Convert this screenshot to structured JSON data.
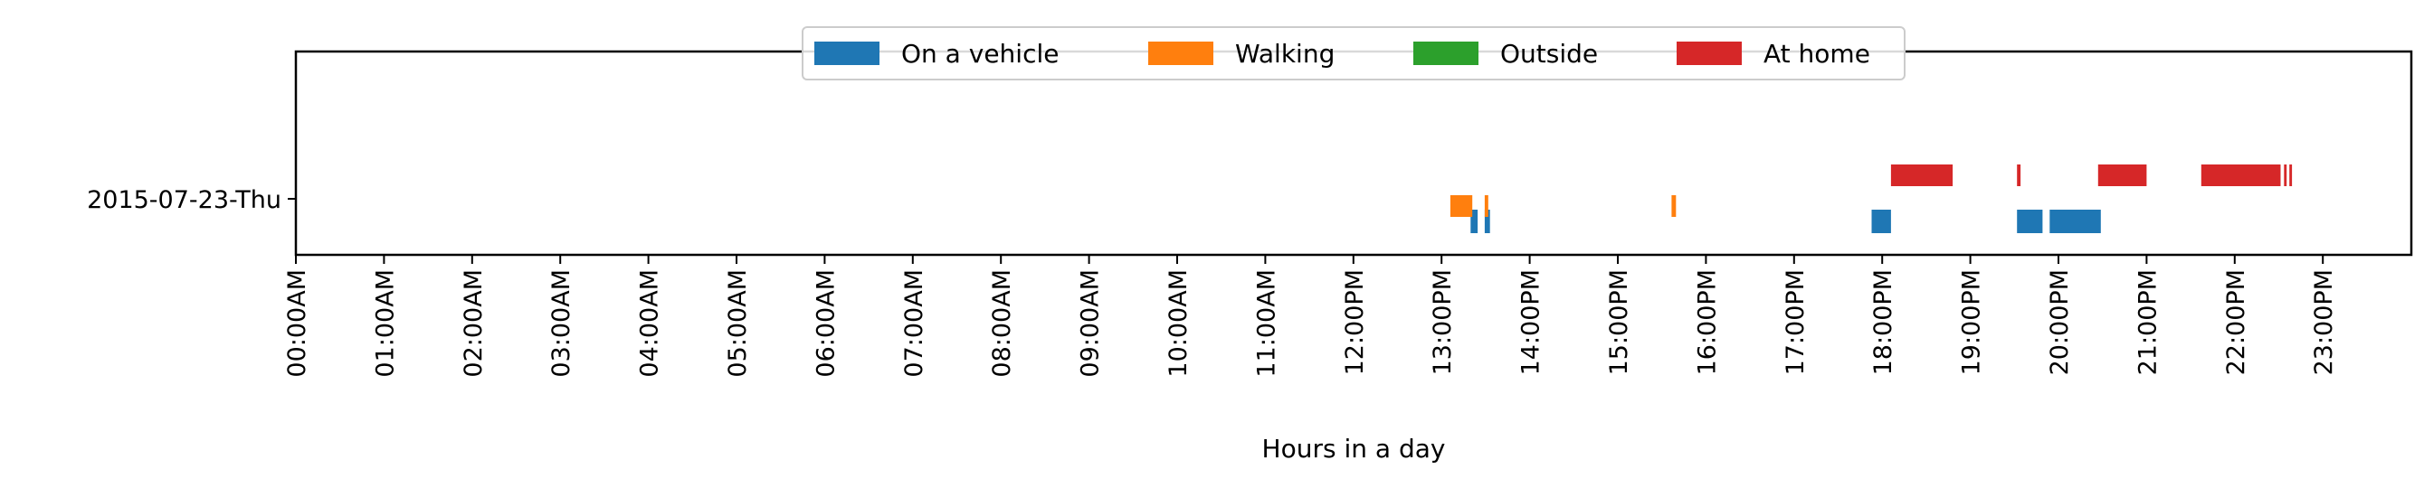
{
  "chart_data": {
    "type": "timeline",
    "title": "",
    "xlabel": "Hours in a day",
    "ylabel": "",
    "xlim": [
      0,
      24
    ],
    "grid": false,
    "legend_placement": "top-center",
    "y_categories": [
      "2015-07-23-Thu"
    ],
    "x_ticks": [
      {
        "value": 0,
        "label": "00:00AM"
      },
      {
        "value": 1,
        "label": "01:00AM"
      },
      {
        "value": 2,
        "label": "02:00AM"
      },
      {
        "value": 3,
        "label": "03:00AM"
      },
      {
        "value": 4,
        "label": "04:00AM"
      },
      {
        "value": 5,
        "label": "05:00AM"
      },
      {
        "value": 6,
        "label": "06:00AM"
      },
      {
        "value": 7,
        "label": "07:00AM"
      },
      {
        "value": 8,
        "label": "08:00AM"
      },
      {
        "value": 9,
        "label": "09:00AM"
      },
      {
        "value": 10,
        "label": "10:00AM"
      },
      {
        "value": 11,
        "label": "11:00AM"
      },
      {
        "value": 12,
        "label": "12:00PM"
      },
      {
        "value": 13,
        "label": "13:00PM"
      },
      {
        "value": 14,
        "label": "14:00PM"
      },
      {
        "value": 15,
        "label": "15:00PM"
      },
      {
        "value": 16,
        "label": "16:00PM"
      },
      {
        "value": 17,
        "label": "17:00PM"
      },
      {
        "value": 18,
        "label": "18:00PM"
      },
      {
        "value": 19,
        "label": "19:00PM"
      },
      {
        "value": 20,
        "label": "20:00PM"
      },
      {
        "value": 21,
        "label": "21:00PM"
      },
      {
        "value": 22,
        "label": "22:00PM"
      },
      {
        "value": 23,
        "label": "23:00PM"
      }
    ],
    "series": [
      {
        "name": "On a vehicle",
        "color": "#1f77b4",
        "intervals": [
          [
            13.33,
            13.41
          ],
          [
            13.49,
            13.55
          ],
          [
            17.88,
            18.1
          ],
          [
            19.53,
            19.82
          ],
          [
            19.9,
            20.48
          ]
        ]
      },
      {
        "name": "Walking",
        "color": "#ff7f0e",
        "intervals": [
          [
            13.1,
            13.35
          ],
          [
            13.49,
            13.53
          ],
          [
            15.61,
            15.66
          ]
        ]
      },
      {
        "name": "Outside",
        "color": "#2ca02c",
        "intervals": []
      },
      {
        "name": "At home",
        "color": "#d62728",
        "intervals": [
          [
            18.1,
            18.8
          ],
          [
            19.53,
            19.57
          ],
          [
            20.45,
            21.0
          ],
          [
            21.62,
            22.52
          ],
          [
            22.56,
            22.59
          ],
          [
            22.62,
            22.65
          ]
        ]
      }
    ]
  }
}
